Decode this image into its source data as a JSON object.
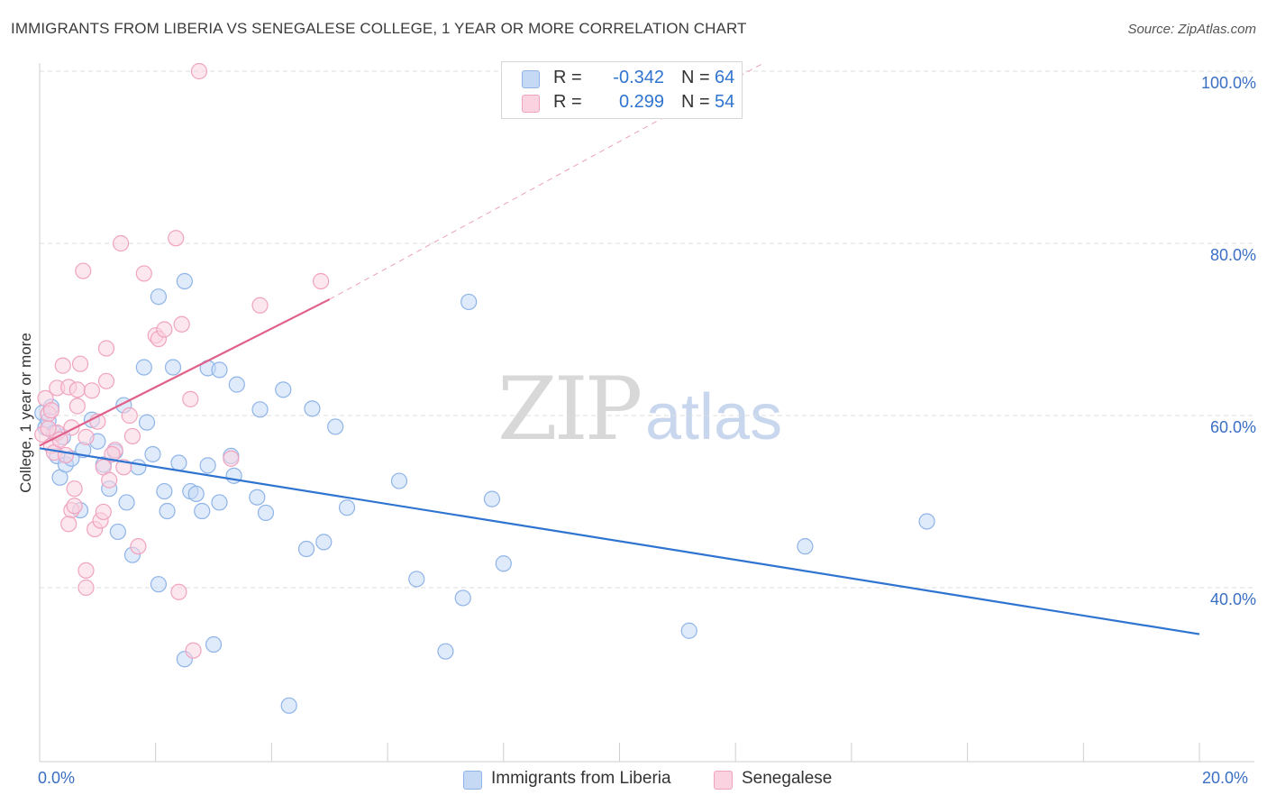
{
  "header": {
    "title": "IMMIGRANTS FROM LIBERIA VS SENEGALESE COLLEGE, 1 YEAR OR MORE CORRELATION CHART",
    "source": "Source: ZipAtlas.com"
  },
  "watermark": {
    "zip": "ZIP",
    "atlas": "atlas"
  },
  "legend": {
    "r_label": "R =",
    "n_label": "N =",
    "series": [
      {
        "name": "Immigrants from Liberia",
        "r": "-0.342",
        "n": "64",
        "color": "#8fb4e8",
        "fill": "#c5d9f5",
        "line": "#2f74d0"
      },
      {
        "name": "Senegalese",
        "r": "0.299",
        "n": "54",
        "color": "#f0a3bf",
        "fill": "#fbd3e0",
        "line": "#e0608a"
      }
    ]
  },
  "chart_data": {
    "type": "scatter",
    "title": "IMMIGRANTS FROM LIBERIA VS SENEGALESE COLLEGE, 1 YEAR OR MORE CORRELATION CHART",
    "xlabel": "",
    "ylabel": "College, 1 year or more",
    "xlim": [
      0,
      20
    ],
    "ylim": [
      20,
      102
    ],
    "x_tick_labels": [
      "0.0%",
      "20.0%"
    ],
    "y_ticks": [
      40,
      60,
      80,
      100
    ],
    "y_tick_labels": [
      "40.0%",
      "60.0%",
      "80.0%",
      "100.0%"
    ],
    "grid": true,
    "series": [
      {
        "name": "Immigrants from Liberia",
        "points": [
          [
            0.05,
            60.3
          ],
          [
            0.1,
            58.6
          ],
          [
            0.15,
            59.4
          ],
          [
            0.2,
            61.0
          ],
          [
            0.3,
            55.3
          ],
          [
            0.35,
            52.8
          ],
          [
            0.4,
            57.5
          ],
          [
            0.45,
            54.3
          ],
          [
            0.55,
            55.0
          ],
          [
            0.7,
            49.0
          ],
          [
            0.75,
            56.0
          ],
          [
            0.9,
            59.5
          ],
          [
            1.0,
            57.0
          ],
          [
            1.1,
            54.3
          ],
          [
            1.2,
            51.5
          ],
          [
            1.3,
            55.8
          ],
          [
            1.35,
            46.5
          ],
          [
            1.45,
            61.2
          ],
          [
            1.5,
            49.9
          ],
          [
            1.6,
            43.8
          ],
          [
            1.7,
            54.0
          ],
          [
            1.8,
            65.6
          ],
          [
            1.85,
            59.2
          ],
          [
            1.95,
            55.5
          ],
          [
            2.05,
            40.4
          ],
          [
            2.05,
            73.8
          ],
          [
            2.15,
            51.2
          ],
          [
            2.2,
            48.9
          ],
          [
            2.3,
            65.6
          ],
          [
            2.4,
            54.5
          ],
          [
            2.5,
            31.7
          ],
          [
            2.5,
            75.6
          ],
          [
            2.6,
            51.2
          ],
          [
            2.7,
            50.9
          ],
          [
            2.8,
            48.9
          ],
          [
            2.9,
            65.5
          ],
          [
            2.9,
            54.2
          ],
          [
            3.0,
            33.4
          ],
          [
            3.1,
            65.3
          ],
          [
            3.1,
            49.9
          ],
          [
            3.3,
            55.3
          ],
          [
            3.35,
            53.0
          ],
          [
            3.4,
            63.6
          ],
          [
            3.75,
            50.5
          ],
          [
            3.8,
            60.7
          ],
          [
            3.9,
            48.7
          ],
          [
            4.2,
            63.0
          ],
          [
            4.3,
            26.3
          ],
          [
            4.6,
            44.5
          ],
          [
            4.7,
            60.8
          ],
          [
            4.9,
            45.3
          ],
          [
            5.1,
            58.7
          ],
          [
            5.3,
            49.3
          ],
          [
            6.2,
            52.4
          ],
          [
            6.5,
            41.0
          ],
          [
            7.0,
            32.6
          ],
          [
            7.3,
            38.8
          ],
          [
            7.4,
            73.2
          ],
          [
            7.8,
            50.3
          ],
          [
            8.0,
            42.8
          ],
          [
            11.2,
            35.0
          ],
          [
            13.2,
            44.8
          ],
          [
            15.3,
            47.7
          ],
          [
            0.25,
            58.0
          ]
        ]
      },
      {
        "name": "Senegalese",
        "points": [
          [
            0.05,
            57.8
          ],
          [
            0.1,
            62.0
          ],
          [
            0.15,
            60.2
          ],
          [
            0.2,
            56.5
          ],
          [
            0.25,
            55.7
          ],
          [
            0.3,
            58.0
          ],
          [
            0.3,
            63.2
          ],
          [
            0.4,
            65.8
          ],
          [
            0.45,
            55.4
          ],
          [
            0.5,
            63.3
          ],
          [
            0.55,
            58.6
          ],
          [
            0.55,
            49.0
          ],
          [
            0.6,
            49.5
          ],
          [
            0.6,
            51.5
          ],
          [
            0.65,
            61.1
          ],
          [
            0.65,
            63.0
          ],
          [
            0.7,
            66.0
          ],
          [
            0.75,
            76.8
          ],
          [
            0.8,
            42.0
          ],
          [
            0.8,
            40.0
          ],
          [
            0.8,
            57.5
          ],
          [
            0.9,
            62.9
          ],
          [
            0.95,
            46.8
          ],
          [
            1.0,
            59.3
          ],
          [
            1.05,
            47.8
          ],
          [
            1.1,
            54.0
          ],
          [
            1.15,
            64.0
          ],
          [
            1.15,
            67.8
          ],
          [
            1.2,
            52.5
          ],
          [
            1.3,
            56.0
          ],
          [
            1.4,
            80.0
          ],
          [
            1.45,
            54.0
          ],
          [
            1.55,
            60.0
          ],
          [
            1.6,
            57.6
          ],
          [
            1.7,
            44.8
          ],
          [
            1.8,
            76.5
          ],
          [
            2.0,
            69.3
          ],
          [
            2.05,
            68.9
          ],
          [
            2.15,
            70.0
          ],
          [
            2.35,
            80.6
          ],
          [
            2.4,
            39.5
          ],
          [
            2.45,
            70.6
          ],
          [
            2.6,
            61.9
          ],
          [
            2.65,
            32.7
          ],
          [
            2.75,
            100.0
          ],
          [
            3.3,
            55.0
          ],
          [
            3.8,
            72.8
          ],
          [
            4.85,
            75.6
          ],
          [
            0.35,
            57.2
          ],
          [
            0.2,
            60.6
          ],
          [
            1.1,
            48.8
          ],
          [
            1.25,
            55.5
          ],
          [
            0.5,
            47.4
          ],
          [
            0.15,
            58.5
          ]
        ]
      }
    ],
    "trendlines": [
      {
        "series": "Immigrants from Liberia",
        "x": [
          0,
          20
        ],
        "y": [
          56.2,
          34.6
        ]
      },
      {
        "series": "Senegalese",
        "x": [
          0,
          5.0
        ],
        "y": [
          56.5,
          73.5
        ],
        "extension_x": [
          5.0,
          12.5
        ],
        "extension_y": [
          73.5,
          101
        ]
      }
    ]
  },
  "axis_labels": {
    "x_left": "0.0%",
    "x_right": "20.0%"
  }
}
